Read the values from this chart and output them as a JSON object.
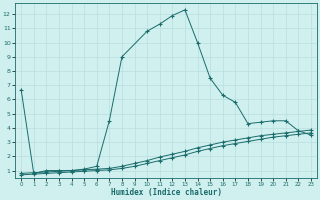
{
  "xlabel": "Humidex (Indice chaleur)",
  "bg_color": "#cff0ee",
  "grid_color": "#b8dede",
  "line_color": "#1a6b6b",
  "xlim": [
    -0.5,
    23.5
  ],
  "ylim": [
    0.5,
    12.8
  ],
  "xticks": [
    0,
    1,
    2,
    3,
    4,
    5,
    6,
    7,
    8,
    9,
    10,
    11,
    12,
    13,
    14,
    15,
    16,
    17,
    18,
    19,
    20,
    21,
    22,
    23
  ],
  "yticks": [
    1,
    2,
    3,
    4,
    5,
    6,
    7,
    8,
    9,
    10,
    11,
    12
  ],
  "curve1_x": [
    0,
    1,
    2,
    3,
    4,
    5,
    6,
    7,
    8,
    10,
    11,
    12,
    13,
    14,
    15,
    16,
    17,
    18,
    19,
    20,
    21,
    22,
    23
  ],
  "curve1_y": [
    6.7,
    0.8,
    1.0,
    1.0,
    1.0,
    1.1,
    1.3,
    4.5,
    9.0,
    10.8,
    11.3,
    11.9,
    12.3,
    10.0,
    7.5,
    6.3,
    5.8,
    4.3,
    4.4,
    4.5,
    4.5,
    3.8,
    3.5
  ],
  "curve2_x": [
    0,
    1,
    2,
    3,
    4,
    5,
    6,
    7,
    8,
    9,
    10,
    11,
    12,
    13,
    14,
    15,
    16,
    17,
    18,
    19,
    20,
    21,
    22,
    23
  ],
  "curve2_y": [
    0.8,
    0.85,
    0.9,
    0.95,
    1.0,
    1.05,
    1.1,
    1.15,
    1.3,
    1.5,
    1.7,
    1.95,
    2.15,
    2.35,
    2.6,
    2.8,
    3.0,
    3.15,
    3.3,
    3.45,
    3.55,
    3.65,
    3.75,
    3.85
  ],
  "curve3_x": [
    0,
    1,
    2,
    3,
    4,
    5,
    6,
    7,
    8,
    9,
    10,
    11,
    12,
    13,
    14,
    15,
    16,
    17,
    18,
    19,
    20,
    21,
    22,
    23
  ],
  "curve3_y": [
    0.7,
    0.75,
    0.8,
    0.85,
    0.9,
    0.95,
    1.0,
    1.05,
    1.15,
    1.3,
    1.5,
    1.7,
    1.9,
    2.1,
    2.35,
    2.55,
    2.75,
    2.9,
    3.05,
    3.2,
    3.35,
    3.45,
    3.55,
    3.65
  ]
}
